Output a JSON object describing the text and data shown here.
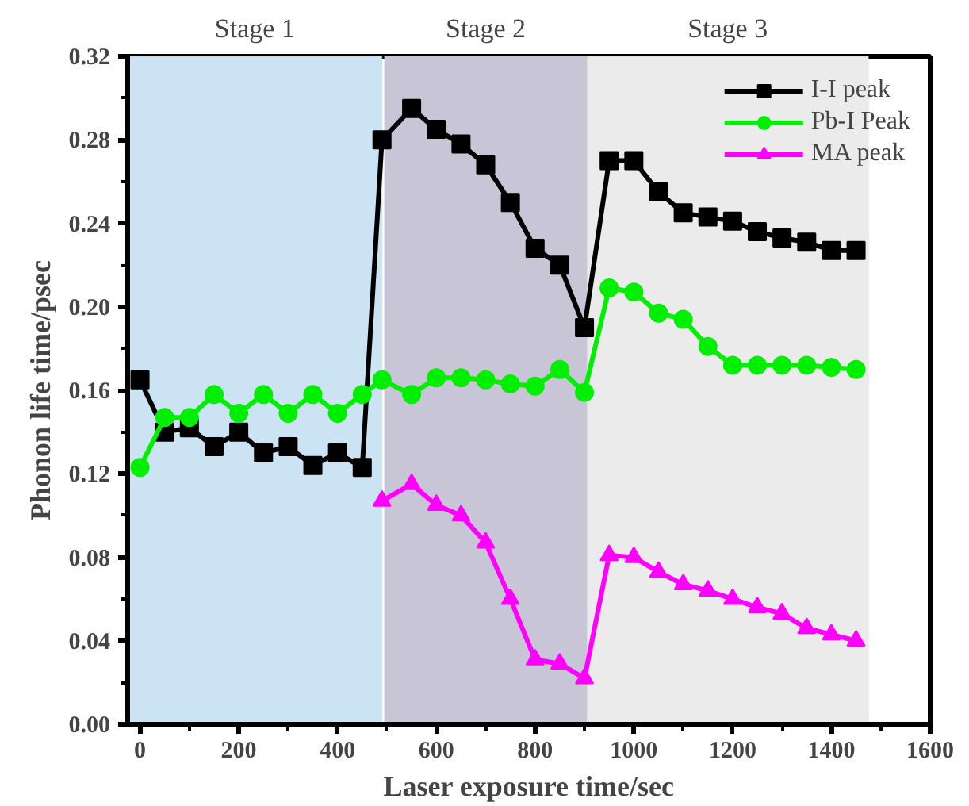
{
  "chart_data": {
    "type": "line",
    "xlabel": "Laser exposure time/sec",
    "ylabel": "Phonon life time/psec",
    "x": [
      0,
      50,
      100,
      150,
      200,
      250,
      300,
      350,
      400,
      450,
      490,
      550,
      600,
      650,
      700,
      750,
      800,
      850,
      900,
      950,
      1000,
      1050,
      1100,
      1150,
      1200,
      1250,
      1300,
      1350,
      1400,
      1450
    ],
    "series": [
      {
        "name": "I-I peak",
        "color": "#000000",
        "marker": "square",
        "values": [
          0.165,
          0.14,
          0.142,
          0.133,
          0.14,
          0.13,
          0.133,
          0.124,
          0.13,
          0.123,
          0.28,
          0.295,
          0.285,
          0.278,
          0.268,
          0.25,
          0.228,
          0.22,
          0.19,
          0.27,
          0.27,
          0.255,
          0.245,
          0.243,
          0.241,
          0.236,
          0.233,
          0.231,
          0.227,
          0.227
        ]
      },
      {
        "name": "Pb-I Peak",
        "color": "#00ee00",
        "marker": "circle",
        "values": [
          0.123,
          0.147,
          0.147,
          0.158,
          0.149,
          0.158,
          0.149,
          0.158,
          0.149,
          0.158,
          0.165,
          0.158,
          0.166,
          0.166,
          0.165,
          0.163,
          0.162,
          0.17,
          0.159,
          0.209,
          0.207,
          0.197,
          0.194,
          0.181,
          0.172,
          0.172,
          0.172,
          0.172,
          0.171,
          0.17
        ]
      },
      {
        "name": "MA peak",
        "color": "#ff00ff",
        "marker": "triangle",
        "values": [
          null,
          null,
          null,
          null,
          null,
          null,
          null,
          null,
          null,
          null,
          0.107,
          0.115,
          0.105,
          0.1,
          0.087,
          0.06,
          0.031,
          0.029,
          0.022,
          0.081,
          0.08,
          0.073,
          0.067,
          0.064,
          0.06,
          0.056,
          0.053,
          0.046,
          0.043,
          0.04
        ]
      }
    ],
    "bands": [
      {
        "axis": "x",
        "from": -25,
        "to": 490,
        "label": "Stage 1",
        "color": "#cce3f4"
      },
      {
        "axis": "x",
        "from": 495,
        "to": 905,
        "label": "Stage 2",
        "color": "#c8c5d6"
      },
      {
        "axis": "x",
        "from": 905,
        "to": 1475,
        "label": "Stage 3",
        "color": "#ebebeb"
      }
    ],
    "xlim": [
      -25,
      1600
    ],
    "ylim": [
      0,
      0.32
    ],
    "xticks": [
      0,
      200,
      400,
      600,
      800,
      1000,
      1200,
      1400,
      1600
    ],
    "yticks": [
      {
        "value": 0,
        "label": "0.00"
      },
      {
        "value": 0.04,
        "label": "0.04"
      },
      {
        "value": 0.08,
        "label": "0.08"
      },
      {
        "value": 0.12,
        "label": "0.12"
      },
      {
        "value": 0.16,
        "label": "0.16"
      },
      {
        "value": 0.2,
        "label": "0.20"
      },
      {
        "value": 0.24,
        "label": "0.24"
      },
      {
        "value": 0.28,
        "label": "0.28"
      },
      {
        "value": 0.32,
        "label": "0.32"
      }
    ],
    "grid": false,
    "legend": "top right",
    "line_style": "solid"
  }
}
